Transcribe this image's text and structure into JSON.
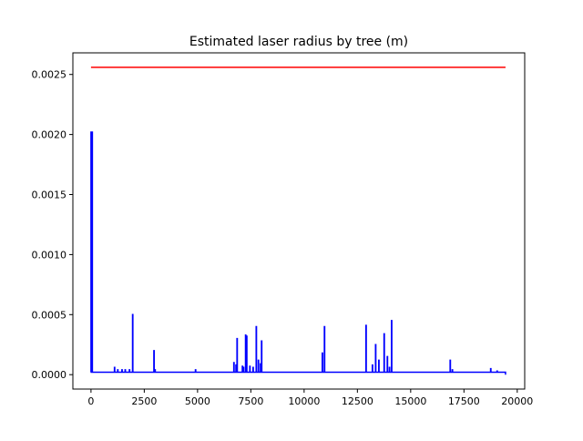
{
  "chart_data": {
    "type": "line",
    "title": "Estimated laser radius by tree (m)",
    "xlabel": "",
    "ylabel": "",
    "xlim": [
      -850,
      20350
    ],
    "ylim": [
      -0.00012,
      0.00268
    ],
    "xticks": [
      0,
      2500,
      5000,
      7500,
      10000,
      12500,
      15000,
      17500,
      20000
    ],
    "xtick_labels": [
      "0",
      "2500",
      "5000",
      "7500",
      "10000",
      "12500",
      "15000",
      "17500",
      "20000"
    ],
    "yticks": [
      0.0,
      0.0005,
      0.001,
      0.0015,
      0.002,
      0.0025
    ],
    "ytick_labels": [
      "0.0000",
      "0.0005",
      "0.0010",
      "0.0015",
      "0.0020",
      "0.0025"
    ],
    "grid": false,
    "legend": "none",
    "threshold": {
      "color": "#ff0000",
      "x": [
        0,
        19450
      ],
      "y": [
        0.00256,
        0.00256
      ]
    },
    "radius_series": {
      "color": "#0000ff",
      "baseline": 2e-05,
      "x_end": 19450,
      "end_value": 0.0,
      "spikes": [
        {
          "x": 0,
          "y": 0.00202
        },
        {
          "x": 50,
          "y": 0.00202
        },
        {
          "x": 1100,
          "y": 6e-05
        },
        {
          "x": 1250,
          "y": 4e-05
        },
        {
          "x": 1450,
          "y": 4e-05
        },
        {
          "x": 1600,
          "y": 4e-05
        },
        {
          "x": 1800,
          "y": 4e-05
        },
        {
          "x": 1950,
          "y": 0.0005
        },
        {
          "x": 2950,
          "y": 0.0002
        },
        {
          "x": 3000,
          "y": 4e-05
        },
        {
          "x": 4900,
          "y": 4e-05
        },
        {
          "x": 6700,
          "y": 0.0001
        },
        {
          "x": 6800,
          "y": 8e-05
        },
        {
          "x": 6850,
          "y": 0.0003
        },
        {
          "x": 7100,
          "y": 7e-05
        },
        {
          "x": 7150,
          "y": 6e-05
        },
        {
          "x": 7250,
          "y": 0.00033
        },
        {
          "x": 7300,
          "y": 0.00032
        },
        {
          "x": 7450,
          "y": 7e-05
        },
        {
          "x": 7600,
          "y": 6e-05
        },
        {
          "x": 7750,
          "y": 0.0004
        },
        {
          "x": 7850,
          "y": 0.00012
        },
        {
          "x": 7950,
          "y": 9e-05
        },
        {
          "x": 8000,
          "y": 0.00028
        },
        {
          "x": 10850,
          "y": 0.00018
        },
        {
          "x": 10950,
          "y": 0.0004
        },
        {
          "x": 12900,
          "y": 0.00041
        },
        {
          "x": 13200,
          "y": 8e-05
        },
        {
          "x": 13350,
          "y": 0.00025
        },
        {
          "x": 13500,
          "y": 0.00012
        },
        {
          "x": 13750,
          "y": 0.00034
        },
        {
          "x": 13900,
          "y": 0.00015
        },
        {
          "x": 14000,
          "y": 6e-05
        },
        {
          "x": 14100,
          "y": 0.00045
        },
        {
          "x": 16850,
          "y": 0.00012
        },
        {
          "x": 16950,
          "y": 4e-05
        },
        {
          "x": 18750,
          "y": 5e-05
        },
        {
          "x": 19050,
          "y": 3e-05
        }
      ]
    }
  }
}
